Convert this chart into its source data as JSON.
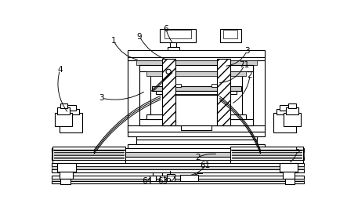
{
  "bg": "#ffffff",
  "lc": "#000000",
  "gc": "#cccccc",
  "figsize": [
    4.43,
    2.73
  ],
  "dpi": 100,
  "lw": 0.8
}
